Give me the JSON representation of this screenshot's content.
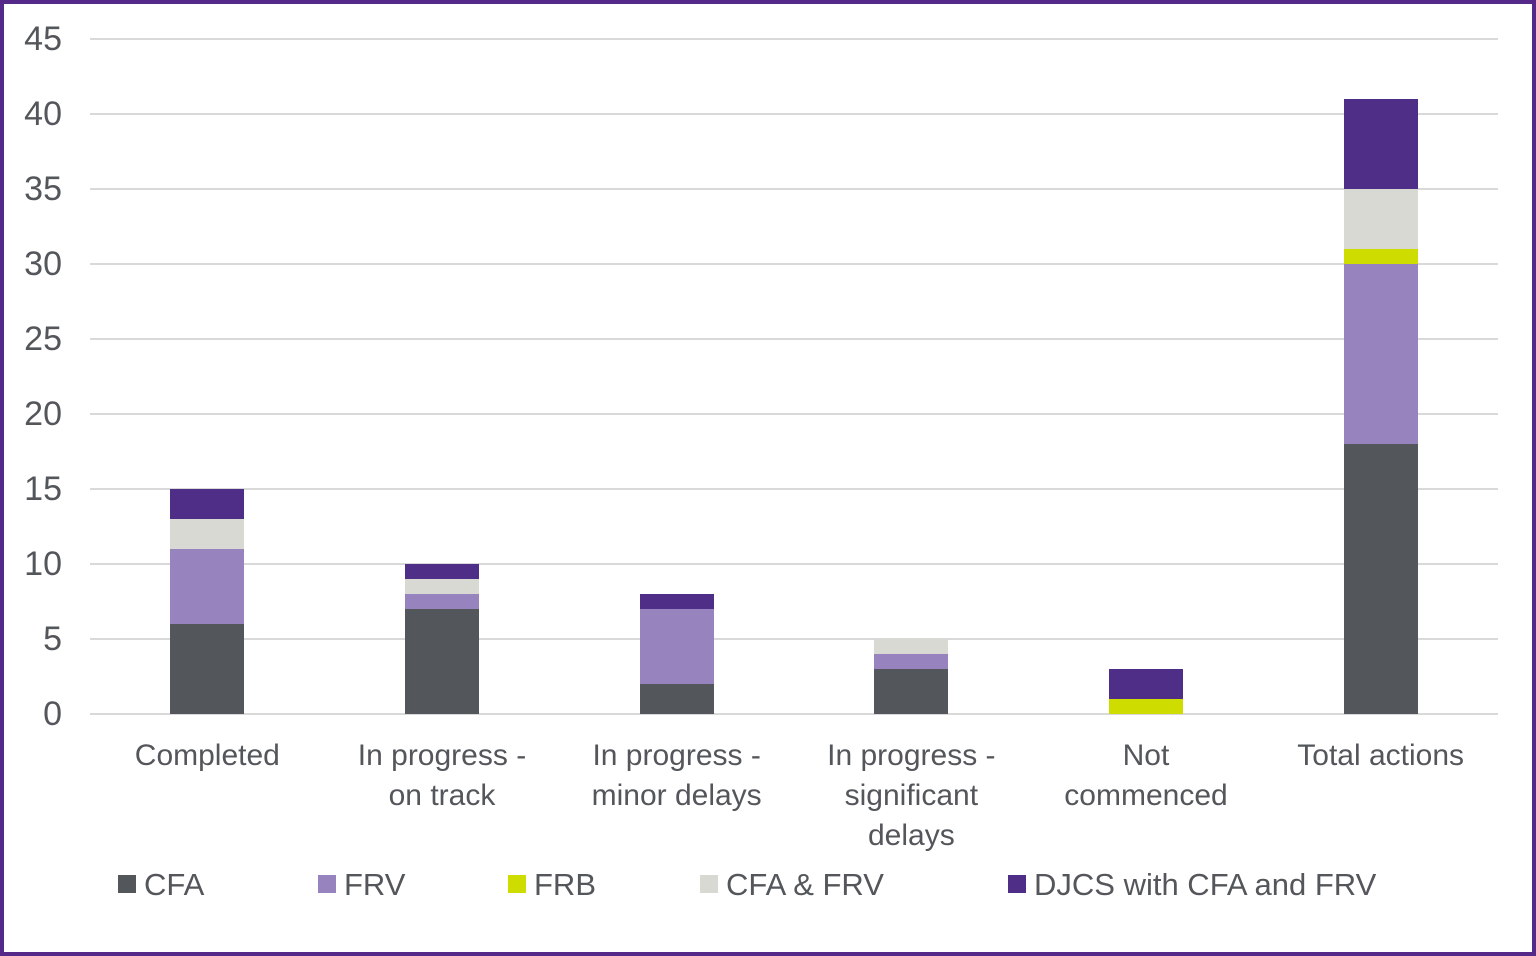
{
  "colors": {
    "cfa": "#53565a",
    "frv": "#9783bd",
    "frb": "#cedc00",
    "cfa_frv": "#d9d9d3",
    "djcs": "#4e2e87",
    "grid": "#d9d9d9",
    "text": "#53565a",
    "frame_border": "#542989"
  },
  "chart_data": {
    "type": "bar",
    "stacked": true,
    "title": "",
    "xlabel": "",
    "ylabel": "",
    "grid": true,
    "legend_position": "bottom",
    "ylim": [
      0,
      45
    ],
    "ytick_step": 5,
    "yticks": [
      "0",
      "5",
      "10",
      "15",
      "20",
      "25",
      "30",
      "35",
      "40",
      "45"
    ],
    "categories": [
      "Completed",
      "In progress -\non track",
      "In progress -\nminor delays",
      "In progress -\nsignificant\ndelays",
      "Not\ncommenced",
      "Total actions"
    ],
    "series": [
      {
        "name": "CFA",
        "color_key": "cfa",
        "values": [
          6,
          7,
          2,
          3,
          0,
          18
        ]
      },
      {
        "name": "FRV",
        "color_key": "frv",
        "values": [
          5,
          1,
          5,
          1,
          0,
          12
        ]
      },
      {
        "name": "FRB",
        "color_key": "frb",
        "values": [
          0,
          0,
          0,
          0,
          1,
          1
        ]
      },
      {
        "name": "CFA & FRV",
        "color_key": "cfa_frv",
        "values": [
          2,
          1,
          0,
          1,
          0,
          4
        ]
      },
      {
        "name": "DJCS with CFA and FRV",
        "color_key": "djcs",
        "values": [
          2,
          1,
          1,
          0,
          2,
          6
        ]
      }
    ],
    "totals": [
      15,
      10,
      8,
      5,
      3,
      41
    ]
  },
  "layout_hints": {
    "legend_item_lefts": [
      114,
      314,
      504,
      696,
      1004
    ]
  }
}
